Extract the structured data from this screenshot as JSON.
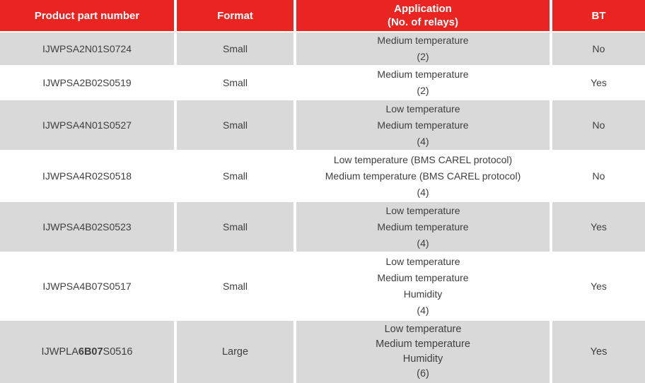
{
  "table": {
    "colors": {
      "header_bg": "#ea2420",
      "header_text": "#ffffff",
      "row_alt_bg": "#d9d9d9",
      "body_text": "#3f3f3f"
    },
    "columns": [
      {
        "label": "Product part number"
      },
      {
        "label": "Format"
      },
      {
        "label": "Application\n(No. of relays)"
      },
      {
        "label": "BT"
      }
    ],
    "rows": [
      {
        "part_prefix": "IJWPSA2N01S0724",
        "part_bold": "",
        "part_suffix": "",
        "format": "Small",
        "application": "Medium temperature\n(2)",
        "bt": "No"
      },
      {
        "part_prefix": "IJWPSA2B02S0519",
        "part_bold": "",
        "part_suffix": "",
        "format": "Small",
        "application": "Medium temperature\n(2)",
        "bt": "Yes"
      },
      {
        "part_prefix": "IJWPSA4N01S0527",
        "part_bold": "",
        "part_suffix": "",
        "format": "Small",
        "application": "Low temperature\nMedium temperature\n(4)",
        "bt": "No"
      },
      {
        "part_prefix": "IJWPSA4R02S0518",
        "part_bold": "",
        "part_suffix": "",
        "format": "Small",
        "application": "Low temperature (BMS CAREL protocol)\nMedium temperature (BMS CAREL protocol)\n(4)",
        "bt": "No"
      },
      {
        "part_prefix": "IJWPSA4B02S0523",
        "part_bold": "",
        "part_suffix": "",
        "format": "Small",
        "application": "Low temperature\nMedium temperature\n(4)",
        "bt": "Yes"
      },
      {
        "part_prefix": "IJWPSA4B07S0517",
        "part_bold": "",
        "part_suffix": "",
        "format": "Small",
        "application": "Low temperature\nMedium temperature\nHumidity\n(4)",
        "bt": "Yes"
      },
      {
        "part_prefix": "IJWPLA",
        "part_bold": "6B07",
        "part_suffix": "S0516",
        "format": "Large",
        "application": "Low temperature\nMedium temperature\nHumidity\n(6)",
        "bt": "Yes"
      }
    ]
  }
}
